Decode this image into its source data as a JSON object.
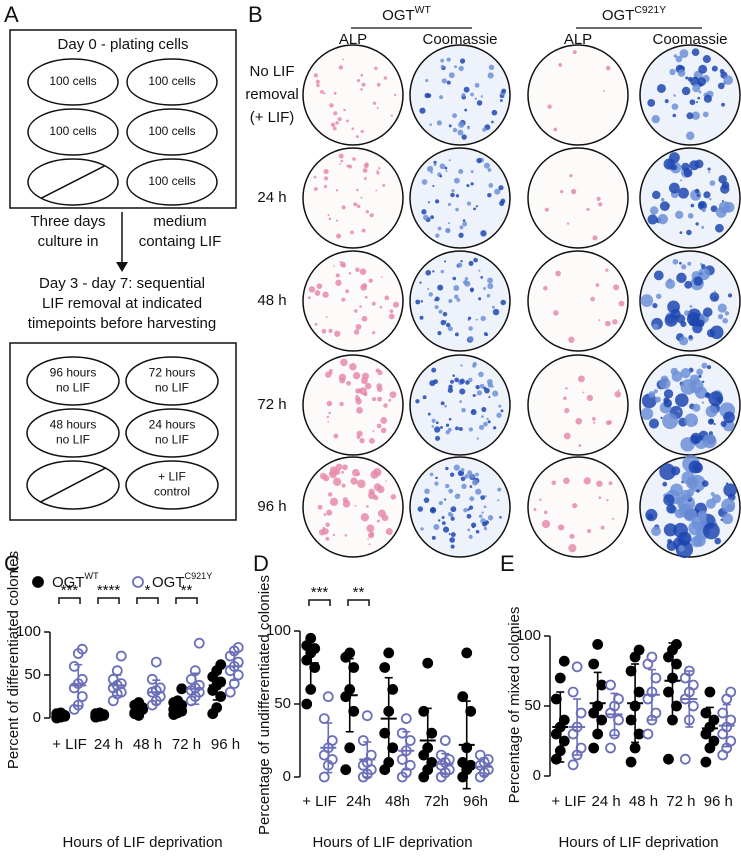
{
  "panel_a": {
    "label": "A",
    "title": "Day 0 - plating cells",
    "plate1": [
      "100 cells",
      "100 cells",
      "100 cells",
      "100 cells",
      null,
      "100 cells"
    ],
    "arrow_left": [
      "Three days",
      "culture in"
    ],
    "arrow_right": [
      "medium",
      "containg LIF"
    ],
    "step": [
      "Day 3 - day 7: sequential",
      "LIF removal at indicated",
      "timepoints before harvesting"
    ],
    "plate2": [
      [
        "96 hours",
        "no LIF"
      ],
      [
        "72 hours",
        "no LIF"
      ],
      [
        "48 hours",
        "no LIF"
      ],
      [
        "24 hours",
        "no LIF"
      ],
      null,
      [
        "+ LIF",
        "control"
      ]
    ]
  },
  "panel_b": {
    "label": "B",
    "groups": [
      {
        "name": "OGT",
        "superscript": "WT"
      },
      {
        "name": "OGT",
        "superscript": "C921Y"
      }
    ],
    "columns": [
      "ALP",
      "Coomassie",
      "ALP",
      "Coomassie"
    ],
    "rows": [
      [
        "No LIF",
        "removal",
        "(+ LIF)"
      ],
      [
        "24 h"
      ],
      [
        "48 h"
      ],
      [
        "72 h"
      ],
      [
        "96 h"
      ]
    ]
  },
  "chart_data": [
    {
      "type": "strip",
      "panel": "C",
      "y_label": "Percent of differentiated colonies",
      "x_label": "Hours of LIF deprivation",
      "categories": [
        "+ LIF",
        "24 h",
        "48 h",
        "72 h",
        "96 h"
      ],
      "ylim": [
        0,
        100
      ],
      "yticks": [
        0,
        50,
        100
      ],
      "legend": "top",
      "annotations": [
        "***",
        "****",
        "*",
        "**",
        null
      ],
      "series": [
        {
          "name": "OGT",
          "superscript": "WT",
          "color": "#000000",
          "marker": "filled",
          "values": [
            [
              1,
              2,
              3,
              5,
              6,
              2,
              0,
              1
            ],
            [
              2,
              3,
              4,
              5,
              6,
              3,
              1,
              2
            ],
            [
              5,
              8,
              12,
              15,
              3,
              10,
              6,
              18
            ],
            [
              4,
              6,
              8,
              10,
              12,
              15,
              18,
              20,
              34
            ],
            [
              5,
              12,
              25,
              32,
              38,
              42,
              48,
              55,
              62
            ]
          ],
          "means": [
            3,
            3,
            9,
            13,
            38
          ],
          "sds": [
            2,
            2,
            5,
            9,
            17
          ]
        },
        {
          "name": "OGT",
          "superscript": "C921Y",
          "color": "#6a6fb8",
          "marker": "open",
          "values": [
            [
              10,
              15,
              25,
              35,
              40,
              45,
              60,
              75,
              80
            ],
            [
              20,
              28,
              30,
              35,
              38,
              40,
              45,
              55,
              72
            ],
            [
              15,
              20,
              25,
              30,
              32,
              35,
              45,
              65
            ],
            [
              20,
              25,
              30,
              32,
              35,
              38,
              45,
              55,
              87
            ],
            [
              30,
              40,
              50,
              55,
              60,
              65,
              72,
              78,
              82
            ]
          ],
          "means": [
            38,
            38,
            30,
            34,
            60
          ],
          "sds": [
            24,
            12,
            14,
            18,
            16
          ]
        }
      ]
    },
    {
      "type": "strip",
      "panel": "D",
      "y_label": "Percentage of undifferentiated colonies",
      "x_label": "Hours of LIF deprivation",
      "categories": [
        "+ LIF",
        "24h",
        "48h",
        "72h",
        "96h"
      ],
      "ylim": [
        0,
        100
      ],
      "yticks": [
        0,
        50,
        100
      ],
      "annotations": [
        "***",
        "**",
        null,
        null,
        null
      ],
      "series": [
        {
          "name": "OGT",
          "superscript": "WT",
          "color": "#000000",
          "marker": "filled",
          "values": [
            [
              50,
              60,
              75,
              80,
              85,
              88,
              90,
              95
            ],
            [
              5,
              20,
              45,
              55,
              60,
              75,
              82,
              85
            ],
            [
              5,
              10,
              20,
              30,
              45,
              60,
              75,
              85
            ],
            [
              0,
              5,
              10,
              15,
              20,
              30,
              45,
              78
            ],
            [
              0,
              5,
              8,
              10,
              20,
              45,
              55,
              85
            ]
          ],
          "means": [
            78,
            56,
            40,
            25,
            22
          ],
          "sds": [
            17,
            25,
            28,
            22,
            30
          ]
        },
        {
          "name": "OGT",
          "superscript": "C921Y",
          "color": "#6a6fb8",
          "marker": "open",
          "values": [
            [
              0,
              8,
              12,
              15,
              20,
              25,
              40,
              55
            ],
            [
              0,
              2,
              5,
              8,
              10,
              15,
              25,
              42
            ],
            [
              0,
              3,
              8,
              12,
              18,
              25,
              30,
              40
            ],
            [
              0,
              3,
              5,
              8,
              10,
              12,
              15,
              25
            ],
            [
              0,
              3,
              5,
              8,
              10,
              12,
              15
            ]
          ],
          "means": [
            20,
            12,
            18,
            9,
            7
          ],
          "sds": [
            17,
            12,
            13,
            7,
            6
          ]
        }
      ]
    },
    {
      "type": "strip",
      "panel": "E",
      "y_label": "Percentage of mixed colonies",
      "x_label": "Hours of LIF deprivation",
      "categories": [
        "+ LIF",
        "24 h",
        "48 h",
        "72 h",
        "96 h"
      ],
      "ylim": [
        0,
        100
      ],
      "yticks": [
        0,
        50,
        100
      ],
      "series": [
        {
          "name": "OGT",
          "superscript": "WT",
          "color": "#000000",
          "marker": "filled",
          "values": [
            [
              12,
              18,
              25,
              30,
              35,
              40,
              55,
              70,
              82
            ],
            [
              20,
              30,
              40,
              45,
              50,
              65,
              80,
              94
            ],
            [
              10,
              20,
              30,
              40,
              50,
              60,
              75,
              85,
              90
            ],
            [
              12,
              40,
              50,
              60,
              70,
              80,
              85,
              90,
              94
            ],
            [
              10,
              20,
              25,
              30,
              35,
              40,
              45,
              60
            ]
          ],
          "means": [
            35,
            52,
            52,
            68,
            34
          ],
          "sds": [
            25,
            22,
            28,
            27,
            15
          ]
        },
        {
          "name": "OGT",
          "superscript": "C921Y",
          "color": "#6a6fb8",
          "marker": "open",
          "values": [
            [
              8,
              15,
              20,
              30,
              35,
              45,
              60,
              78
            ],
            [
              20,
              30,
              40,
              45,
              50,
              55,
              65
            ],
            [
              30,
              40,
              45,
              55,
              60,
              70,
              80,
              85
            ],
            [
              12,
              40,
              50,
              55,
              60,
              65,
              70,
              75
            ],
            [
              15,
              20,
              25,
              30,
              35,
              40,
              45,
              55,
              60
            ]
          ],
          "means": [
            35,
            44,
            58,
            55,
            36
          ],
          "sds": [
            20,
            15,
            18,
            20,
            15
          ]
        }
      ]
    }
  ]
}
